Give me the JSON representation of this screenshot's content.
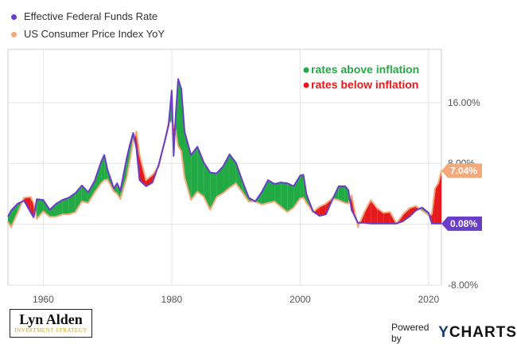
{
  "legend": {
    "items": [
      {
        "label": "Effective Federal Funds Rate",
        "color": "#6a3dc9"
      },
      {
        "label": "US Consumer Price Index YoY",
        "color": "#f4a97a"
      }
    ]
  },
  "annotations": {
    "above": {
      "label": "rates above inflation",
      "color": "#22aa44"
    },
    "below": {
      "label": "rates below inflation",
      "color": "#e8191c"
    }
  },
  "badges": {
    "cpi": {
      "label": "7.04%",
      "value": 7.04,
      "color": "#f4a97a"
    },
    "fed": {
      "label": "0.08%",
      "value": 0.08,
      "color": "#6a3dc9"
    }
  },
  "branding": {
    "name": "Lyn Alden",
    "sub": "INVESTMENT STRATEGY",
    "powered_by": "Powered by",
    "ycharts_y": "Y",
    "ycharts_rest": "CHARTS"
  },
  "chart_data": {
    "type": "line",
    "x_ticks": [
      1960,
      1980,
      2000,
      2020
    ],
    "y_ticks": [
      {
        "value": 16,
        "label": "16.00%"
      },
      {
        "value": 8,
        "label": "8.00%"
      },
      {
        "value": 0,
        "label": "0.00%"
      },
      {
        "value": -8,
        "label": "-8.00%"
      }
    ],
    "xlim": [
      1954.5,
      2022
    ],
    "ylim": [
      -8,
      23
    ],
    "grid": true,
    "series": [
      {
        "name": "Effective Federal Funds Rate",
        "color": "#6a3dc9",
        "x": [
          1954.5,
          1955,
          1956,
          1957,
          1958,
          1958.5,
          1959,
          1960,
          1961,
          1962,
          1963,
          1964,
          1965,
          1966,
          1967,
          1968,
          1969,
          1969.5,
          1970,
          1971,
          1971.5,
          1972,
          1973,
          1973.5,
          1974,
          1974.5,
          1975,
          1976,
          1977,
          1978,
          1979,
          1979.5,
          1980,
          1980.3,
          1980.6,
          1981,
          1981.5,
          1982,
          1983,
          1984,
          1985,
          1986,
          1987,
          1988,
          1989,
          1990,
          1991,
          1992,
          1993,
          1994,
          1995,
          1996,
          1997,
          1998,
          1999,
          2000,
          2000.5,
          2001,
          2002,
          2003,
          2004,
          2005,
          2006,
          2007,
          2007.5,
          2008,
          2009,
          2010,
          2011,
          2012,
          2013,
          2014,
          2015,
          2016,
          2017,
          2018,
          2019,
          2020,
          2020.5,
          2021,
          2021.5,
          2022
        ],
        "y": [
          1.0,
          1.8,
          2.7,
          3.1,
          1.6,
          0.9,
          3.3,
          3.2,
          1.9,
          2.7,
          3.2,
          3.5,
          4.1,
          5.1,
          4.2,
          5.7,
          8.2,
          9.1,
          7.2,
          4.7,
          5.4,
          4.4,
          8.7,
          10.5,
          12.0,
          10.0,
          5.8,
          5.0,
          5.5,
          7.9,
          11.2,
          13.0,
          17.6,
          9.0,
          14.0,
          19.1,
          17.8,
          12.2,
          9.1,
          10.2,
          8.1,
          6.8,
          6.7,
          7.6,
          9.2,
          8.1,
          5.7,
          3.5,
          3.0,
          4.2,
          5.8,
          5.3,
          5.5,
          5.4,
          5.0,
          6.4,
          6.5,
          3.9,
          1.7,
          1.1,
          1.3,
          3.2,
          5.0,
          5.0,
          4.5,
          1.9,
          0.2,
          0.2,
          0.1,
          0.1,
          0.1,
          0.1,
          0.1,
          0.4,
          1.0,
          1.8,
          2.2,
          1.5,
          0.1,
          0.1,
          0.1,
          0.1
        ]
      },
      {
        "name": "US Consumer Price Index YoY",
        "color": "#f4a97a",
        "x": [
          1954.5,
          1955,
          1956,
          1957,
          1958,
          1958.5,
          1959,
          1960,
          1961,
          1962,
          1963,
          1964,
          1965,
          1966,
          1967,
          1968,
          1969,
          1969.5,
          1970,
          1971,
          1971.5,
          1972,
          1973,
          1973.5,
          1974,
          1974.5,
          1975,
          1976,
          1977,
          1978,
          1979,
          1979.5,
          1980,
          1980.3,
          1980.6,
          1981,
          1981.5,
          1982,
          1983,
          1984,
          1985,
          1986,
          1987,
          1988,
          1989,
          1990,
          1991,
          1992,
          1993,
          1994,
          1995,
          1996,
          1997,
          1998,
          1999,
          2000,
          2000.5,
          2001,
          2002,
          2003,
          2004,
          2005,
          2006,
          2007,
          2007.5,
          2008,
          2009,
          2010,
          2011,
          2012,
          2013,
          2014,
          2015,
          2016,
          2017,
          2018,
          2019,
          2020,
          2020.5,
          2021,
          2021.5,
          2022
        ],
        "y": [
          0.3,
          -0.4,
          1.5,
          3.5,
          3.6,
          2.8,
          0.7,
          1.7,
          1.0,
          1.0,
          1.3,
          1.3,
          1.6,
          3.0,
          2.8,
          4.2,
          5.4,
          5.8,
          5.9,
          4.3,
          4.0,
          3.3,
          6.2,
          8.5,
          11.0,
          12.2,
          9.1,
          5.8,
          6.5,
          7.6,
          11.3,
          13.3,
          13.5,
          13.0,
          12.3,
          10.3,
          9.6,
          6.2,
          3.2,
          4.3,
          3.6,
          1.9,
          3.6,
          4.1,
          4.8,
          5.4,
          4.2,
          3.0,
          3.0,
          2.6,
          2.8,
          3.0,
          2.3,
          1.6,
          2.2,
          3.4,
          3.5,
          2.8,
          1.6,
          2.3,
          2.7,
          3.4,
          3.2,
          2.8,
          2.7,
          3.8,
          -0.4,
          1.6,
          3.2,
          2.1,
          1.5,
          1.6,
          0.1,
          1.3,
          2.1,
          2.4,
          1.8,
          1.2,
          1.3,
          4.7,
          5.4,
          7.04
        ]
      }
    ]
  }
}
